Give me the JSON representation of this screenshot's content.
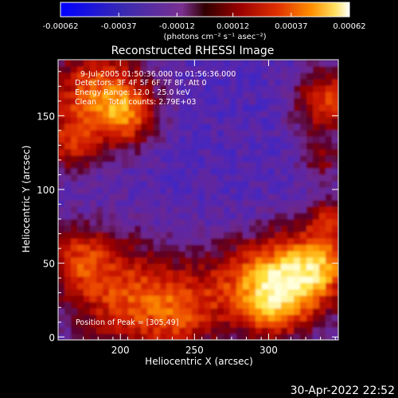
{
  "colorbar": {
    "tick_labels": [
      "-0.00062",
      "-0.00037",
      "-0.00012",
      "0.00012",
      "0.00037",
      "0.00062"
    ],
    "tick_values": [
      -0.00062,
      -0.00037,
      -0.00012,
      0.00012,
      0.00037,
      0.00062
    ],
    "range": [
      -0.00062,
      0.00062
    ],
    "unit_label": "(photons cm⁻² s⁻¹ asec⁻²)",
    "colors": [
      "#0000ff",
      "#4a2aa0",
      "#7a3090",
      "#8a0000",
      "#dd2200",
      "#ff8800",
      "#ffee66",
      "#ffffff"
    ]
  },
  "chart_data": {
    "type": "heatmap",
    "title": "Reconstructed RHESSI Image",
    "xlabel": "Heliocentric X (arcsec)",
    "ylabel": "Heliocentric Y (arcsec)",
    "xlim": [
      158,
      347
    ],
    "ylim": [
      -2,
      188
    ],
    "x_ticks": [
      200,
      250,
      300
    ],
    "y_ticks": [
      0,
      50,
      100,
      150
    ],
    "annotations": [
      "9-Jul-2005 01:50:36.000 to 01:56:36.000",
      "Detectors: 3F 4F 5F 6F 7F 8F, Att 0",
      "Energy Range: 12.0 - 25.0 keV",
      "Clean     Total counts: 2.79E+03",
      "Position of Peak = [305,49]"
    ],
    "peak": {
      "x": 305,
      "y": 49
    },
    "regions": [
      {
        "label": "bright lower-right source",
        "x": 310,
        "y": 45,
        "level": 0.95
      },
      {
        "label": "lower-left emission",
        "x": 200,
        "y": 30,
        "level": 0.55
      },
      {
        "label": "upper-left emission",
        "x": 185,
        "y": 165,
        "level": 0.65
      },
      {
        "label": "upper-right emission",
        "x": 340,
        "y": 150,
        "level": 0.6
      },
      {
        "label": "central negative band",
        "x": 255,
        "y": 110,
        "level": 0.15
      }
    ]
  },
  "footer": {
    "timestamp": "30-Apr-2022 22:52"
  }
}
